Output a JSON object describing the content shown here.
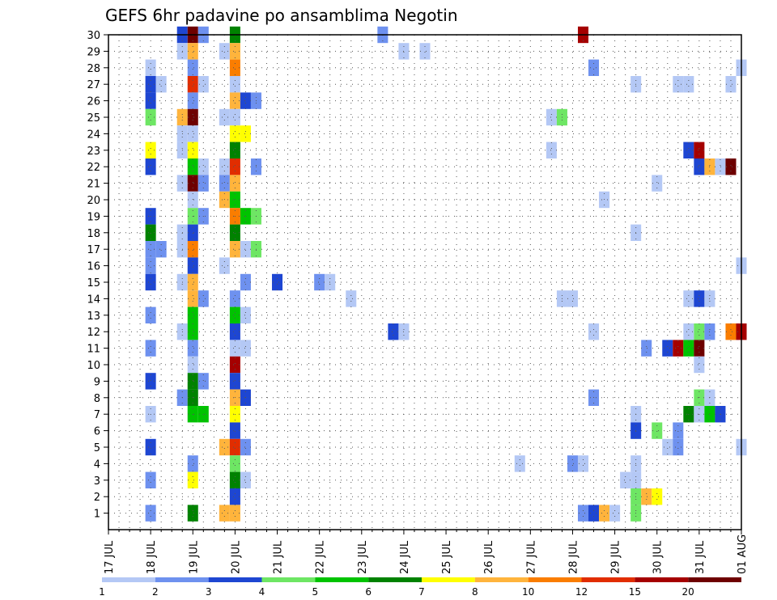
{
  "chart_data": {
    "type": "heatmap",
    "title": "GEFS 6hr padavine po ansamblima Negotin",
    "y_ticks": [
      "1",
      "2",
      "3",
      "4",
      "5",
      "6",
      "7",
      "8",
      "9",
      "10",
      "11",
      "12",
      "13",
      "14",
      "15",
      "16",
      "17",
      "18",
      "19",
      "20",
      "21",
      "22",
      "23",
      "24",
      "25",
      "26",
      "27",
      "28",
      "29",
      "30"
    ],
    "x_ticks": [
      "17 JUL",
      "18 JUL",
      "19 JUL",
      "20 JUL",
      "21 JUL",
      "22 JUL",
      "23 JUL",
      "24 JUL",
      "25 JUL",
      "26 JUL",
      "27 JUL",
      "28 JUL",
      "29 JUL",
      "30 JUL",
      "31 JUL",
      "01 AUG"
    ],
    "x_range_days": [
      0,
      15
    ],
    "y_range": [
      0,
      30
    ],
    "grid": true,
    "colorbar": {
      "ticks": [
        "1",
        "2",
        "3",
        "4",
        "5",
        "6",
        "7",
        "8",
        "10",
        "12",
        "15",
        "20"
      ],
      "colors": [
        "#b4c8f5",
        "#6e91ef",
        "#1e46d2",
        "#6ee664",
        "#00c300",
        "#008200",
        "#ffff00",
        "#ffb43c",
        "#fa7d00",
        "#e12d00",
        "#a50000",
        "#6e0000"
      ]
    },
    "cells": [
      {
        "t": 1.75,
        "m": 30,
        "c": 3
      },
      {
        "t": 2,
        "m": 30,
        "c": 12
      },
      {
        "t": 2.25,
        "m": 30,
        "c": 2
      },
      {
        "t": 3,
        "m": 30,
        "c": 6
      },
      {
        "t": 6.5,
        "m": 30,
        "c": 2
      },
      {
        "t": 11.25,
        "m": 30,
        "c": 11
      },
      {
        "t": 1.75,
        "m": 29,
        "c": 1
      },
      {
        "t": 2,
        "m": 29,
        "c": 8
      },
      {
        "t": 2.75,
        "m": 29,
        "c": 1
      },
      {
        "t": 3,
        "m": 29,
        "c": 8
      },
      {
        "t": 7,
        "m": 29,
        "c": 1
      },
      {
        "t": 7.5,
        "m": 29,
        "c": 1
      },
      {
        "t": 1,
        "m": 28,
        "c": 1
      },
      {
        "t": 2,
        "m": 28,
        "c": 2
      },
      {
        "t": 3,
        "m": 28,
        "c": 9
      },
      {
        "t": 11.5,
        "m": 28,
        "c": 2
      },
      {
        "t": 15,
        "m": 28,
        "c": 1
      },
      {
        "t": 1,
        "m": 27,
        "c": 3
      },
      {
        "t": 1.25,
        "m": 27,
        "c": 1
      },
      {
        "t": 2,
        "m": 27,
        "c": 10
      },
      {
        "t": 2.25,
        "m": 27,
        "c": 1
      },
      {
        "t": 3,
        "m": 27,
        "c": 1
      },
      {
        "t": 12.5,
        "m": 27,
        "c": 1
      },
      {
        "t": 13.5,
        "m": 27,
        "c": 1
      },
      {
        "t": 13.75,
        "m": 27,
        "c": 1
      },
      {
        "t": 14.75,
        "m": 27,
        "c": 1
      },
      {
        "t": 1,
        "m": 26,
        "c": 3
      },
      {
        "t": 2,
        "m": 26,
        "c": 2
      },
      {
        "t": 3,
        "m": 26,
        "c": 8
      },
      {
        "t": 3.25,
        "m": 26,
        "c": 3
      },
      {
        "t": 3.5,
        "m": 26,
        "c": 2
      },
      {
        "t": 1,
        "m": 25,
        "c": 4
      },
      {
        "t": 1.75,
        "m": 25,
        "c": 8
      },
      {
        "t": 2,
        "m": 25,
        "c": 12
      },
      {
        "t": 2.75,
        "m": 25,
        "c": 1
      },
      {
        "t": 3,
        "m": 25,
        "c": 1
      },
      {
        "t": 10.5,
        "m": 25,
        "c": 1
      },
      {
        "t": 10.75,
        "m": 25,
        "c": 4
      },
      {
        "t": 1.75,
        "m": 24,
        "c": 1
      },
      {
        "t": 2,
        "m": 24,
        "c": 1
      },
      {
        "t": 3,
        "m": 24,
        "c": 7
      },
      {
        "t": 3.25,
        "m": 24,
        "c": 7
      },
      {
        "t": 1,
        "m": 23,
        "c": 7
      },
      {
        "t": 1.75,
        "m": 23,
        "c": 1
      },
      {
        "t": 2,
        "m": 23,
        "c": 7
      },
      {
        "t": 3,
        "m": 23,
        "c": 6
      },
      {
        "t": 10.5,
        "m": 23,
        "c": 1
      },
      {
        "t": 13.75,
        "m": 23,
        "c": 3
      },
      {
        "t": 14,
        "m": 23,
        "c": 11
      },
      {
        "t": 1,
        "m": 22,
        "c": 3
      },
      {
        "t": 2,
        "m": 22,
        "c": 5
      },
      {
        "t": 2.25,
        "m": 22,
        "c": 1
      },
      {
        "t": 2.75,
        "m": 22,
        "c": 1
      },
      {
        "t": 3,
        "m": 22,
        "c": 10
      },
      {
        "t": 3.5,
        "m": 22,
        "c": 2
      },
      {
        "t": 14,
        "m": 22,
        "c": 3
      },
      {
        "t": 14.25,
        "m": 22,
        "c": 8
      },
      {
        "t": 14.5,
        "m": 22,
        "c": 1
      },
      {
        "t": 14.75,
        "m": 22,
        "c": 12
      },
      {
        "t": 1.75,
        "m": 21,
        "c": 1
      },
      {
        "t": 2,
        "m": 21,
        "c": 12
      },
      {
        "t": 2.25,
        "m": 21,
        "c": 2
      },
      {
        "t": 2.75,
        "m": 21,
        "c": 2
      },
      {
        "t": 3,
        "m": 21,
        "c": 8
      },
      {
        "t": 13,
        "m": 21,
        "c": 1
      },
      {
        "t": 2,
        "m": 20,
        "c": 1
      },
      {
        "t": 2.75,
        "m": 20,
        "c": 8
      },
      {
        "t": 3,
        "m": 20,
        "c": 5
      },
      {
        "t": 11.75,
        "m": 20,
        "c": 1
      },
      {
        "t": 1,
        "m": 19,
        "c": 3
      },
      {
        "t": 2,
        "m": 19,
        "c": 4
      },
      {
        "t": 2.25,
        "m": 19,
        "c": 2
      },
      {
        "t": 3,
        "m": 19,
        "c": 9
      },
      {
        "t": 3.25,
        "m": 19,
        "c": 5
      },
      {
        "t": 3.5,
        "m": 19,
        "c": 4
      },
      {
        "t": 1,
        "m": 18,
        "c": 6
      },
      {
        "t": 1.75,
        "m": 18,
        "c": 1
      },
      {
        "t": 2,
        "m": 18,
        "c": 3
      },
      {
        "t": 3,
        "m": 18,
        "c": 6
      },
      {
        "t": 12.5,
        "m": 18,
        "c": 1
      },
      {
        "t": 1,
        "m": 17,
        "c": 2
      },
      {
        "t": 1.25,
        "m": 17,
        "c": 2
      },
      {
        "t": 1.75,
        "m": 17,
        "c": 1
      },
      {
        "t": 2,
        "m": 17,
        "c": 9
      },
      {
        "t": 3,
        "m": 17,
        "c": 8
      },
      {
        "t": 3.25,
        "m": 17,
        "c": 1
      },
      {
        "t": 3.5,
        "m": 17,
        "c": 4
      },
      {
        "t": 1,
        "m": 16,
        "c": 2
      },
      {
        "t": 2,
        "m": 16,
        "c": 3
      },
      {
        "t": 2.75,
        "m": 16,
        "c": 1
      },
      {
        "t": 15,
        "m": 16,
        "c": 1
      },
      {
        "t": 1,
        "m": 15,
        "c": 3
      },
      {
        "t": 1.75,
        "m": 15,
        "c": 1
      },
      {
        "t": 2,
        "m": 15,
        "c": 8
      },
      {
        "t": 3.25,
        "m": 15,
        "c": 2
      },
      {
        "t": 4,
        "m": 15,
        "c": 3
      },
      {
        "t": 5,
        "m": 15,
        "c": 2
      },
      {
        "t": 5.25,
        "m": 15,
        "c": 1
      },
      {
        "t": 2,
        "m": 14,
        "c": 8
      },
      {
        "t": 2.25,
        "m": 14,
        "c": 2
      },
      {
        "t": 3,
        "m": 14,
        "c": 2
      },
      {
        "t": 5.75,
        "m": 14,
        "c": 1
      },
      {
        "t": 10.75,
        "m": 14,
        "c": 1
      },
      {
        "t": 11,
        "m": 14,
        "c": 1
      },
      {
        "t": 13.75,
        "m": 14,
        "c": 1
      },
      {
        "t": 14,
        "m": 14,
        "c": 3
      },
      {
        "t": 14.25,
        "m": 14,
        "c": 1
      },
      {
        "t": 1,
        "m": 13,
        "c": 2
      },
      {
        "t": 2,
        "m": 13,
        "c": 5
      },
      {
        "t": 3,
        "m": 13,
        "c": 5
      },
      {
        "t": 3.25,
        "m": 13,
        "c": 1
      },
      {
        "t": 1.75,
        "m": 12,
        "c": 1
      },
      {
        "t": 2,
        "m": 12,
        "c": 5
      },
      {
        "t": 3,
        "m": 12,
        "c": 3
      },
      {
        "t": 6.75,
        "m": 12,
        "c": 3
      },
      {
        "t": 7,
        "m": 12,
        "c": 1
      },
      {
        "t": 11.5,
        "m": 12,
        "c": 1
      },
      {
        "t": 13.75,
        "m": 12,
        "c": 1
      },
      {
        "t": 14,
        "m": 12,
        "c": 4
      },
      {
        "t": 14.25,
        "m": 12,
        "c": 2
      },
      {
        "t": 14.75,
        "m": 12,
        "c": 9
      },
      {
        "t": 15,
        "m": 12,
        "c": 11
      },
      {
        "t": 1,
        "m": 11,
        "c": 2
      },
      {
        "t": 2,
        "m": 11,
        "c": 2
      },
      {
        "t": 3,
        "m": 11,
        "c": 1
      },
      {
        "t": 3.25,
        "m": 11,
        "c": 1
      },
      {
        "t": 12.75,
        "m": 11,
        "c": 2
      },
      {
        "t": 13.25,
        "m": 11,
        "c": 3
      },
      {
        "t": 13.5,
        "m": 11,
        "c": 11
      },
      {
        "t": 13.75,
        "m": 11,
        "c": 5
      },
      {
        "t": 14,
        "m": 11,
        "c": 12
      },
      {
        "t": 2,
        "m": 10,
        "c": 1
      },
      {
        "t": 3,
        "m": 10,
        "c": 11
      },
      {
        "t": 14,
        "m": 10,
        "c": 1
      },
      {
        "t": 1,
        "m": 9,
        "c": 3
      },
      {
        "t": 2,
        "m": 9,
        "c": 6
      },
      {
        "t": 2.25,
        "m": 9,
        "c": 2
      },
      {
        "t": 3,
        "m": 9,
        "c": 3
      },
      {
        "t": 1.75,
        "m": 8,
        "c": 2
      },
      {
        "t": 2,
        "m": 8,
        "c": 6
      },
      {
        "t": 3,
        "m": 8,
        "c": 8
      },
      {
        "t": 3.25,
        "m": 8,
        "c": 3
      },
      {
        "t": 11.5,
        "m": 8,
        "c": 2
      },
      {
        "t": 14,
        "m": 8,
        "c": 4
      },
      {
        "t": 14.25,
        "m": 8,
        "c": 1
      },
      {
        "t": 1,
        "m": 7,
        "c": 1
      },
      {
        "t": 2,
        "m": 7,
        "c": 5
      },
      {
        "t": 2.25,
        "m": 7,
        "c": 5
      },
      {
        "t": 3,
        "m": 7,
        "c": 7
      },
      {
        "t": 12.5,
        "m": 7,
        "c": 1
      },
      {
        "t": 13.75,
        "m": 7,
        "c": 6
      },
      {
        "t": 14,
        "m": 7,
        "c": 1
      },
      {
        "t": 14.25,
        "m": 7,
        "c": 5
      },
      {
        "t": 14.5,
        "m": 7,
        "c": 3
      },
      {
        "t": 3,
        "m": 6,
        "c": 3
      },
      {
        "t": 12.5,
        "m": 6,
        "c": 3
      },
      {
        "t": 13,
        "m": 6,
        "c": 4
      },
      {
        "t": 13.5,
        "m": 6,
        "c": 2
      },
      {
        "t": 1,
        "m": 5,
        "c": 3
      },
      {
        "t": 2.75,
        "m": 5,
        "c": 8
      },
      {
        "t": 3,
        "m": 5,
        "c": 10
      },
      {
        "t": 3.25,
        "m": 5,
        "c": 2
      },
      {
        "t": 13.25,
        "m": 5,
        "c": 1
      },
      {
        "t": 13.5,
        "m": 5,
        "c": 2
      },
      {
        "t": 15,
        "m": 5,
        "c": 1
      },
      {
        "t": 2,
        "m": 4,
        "c": 2
      },
      {
        "t": 3,
        "m": 4,
        "c": 4
      },
      {
        "t": 9.75,
        "m": 4,
        "c": 1
      },
      {
        "t": 11,
        "m": 4,
        "c": 2
      },
      {
        "t": 11.25,
        "m": 4,
        "c": 1
      },
      {
        "t": 12.5,
        "m": 4,
        "c": 1
      },
      {
        "t": 1,
        "m": 3,
        "c": 2
      },
      {
        "t": 2,
        "m": 3,
        "c": 7
      },
      {
        "t": 3,
        "m": 3,
        "c": 6
      },
      {
        "t": 3.25,
        "m": 3,
        "c": 1
      },
      {
        "t": 12.25,
        "m": 3,
        "c": 1
      },
      {
        "t": 12.5,
        "m": 3,
        "c": 1
      },
      {
        "t": 3,
        "m": 2,
        "c": 3
      },
      {
        "t": 12.5,
        "m": 2,
        "c": 4
      },
      {
        "t": 12.75,
        "m": 2,
        "c": 8
      },
      {
        "t": 13,
        "m": 2,
        "c": 7
      },
      {
        "t": 1,
        "m": 1,
        "c": 2
      },
      {
        "t": 2,
        "m": 1,
        "c": 6
      },
      {
        "t": 2.75,
        "m": 1,
        "c": 8
      },
      {
        "t": 3,
        "m": 1,
        "c": 8
      },
      {
        "t": 11.25,
        "m": 1,
        "c": 2
      },
      {
        "t": 11.5,
        "m": 1,
        "c": 3
      },
      {
        "t": 11.75,
        "m": 1,
        "c": 8
      },
      {
        "t": 12,
        "m": 1,
        "c": 1
      },
      {
        "t": 12.5,
        "m": 1,
        "c": 4
      }
    ]
  }
}
